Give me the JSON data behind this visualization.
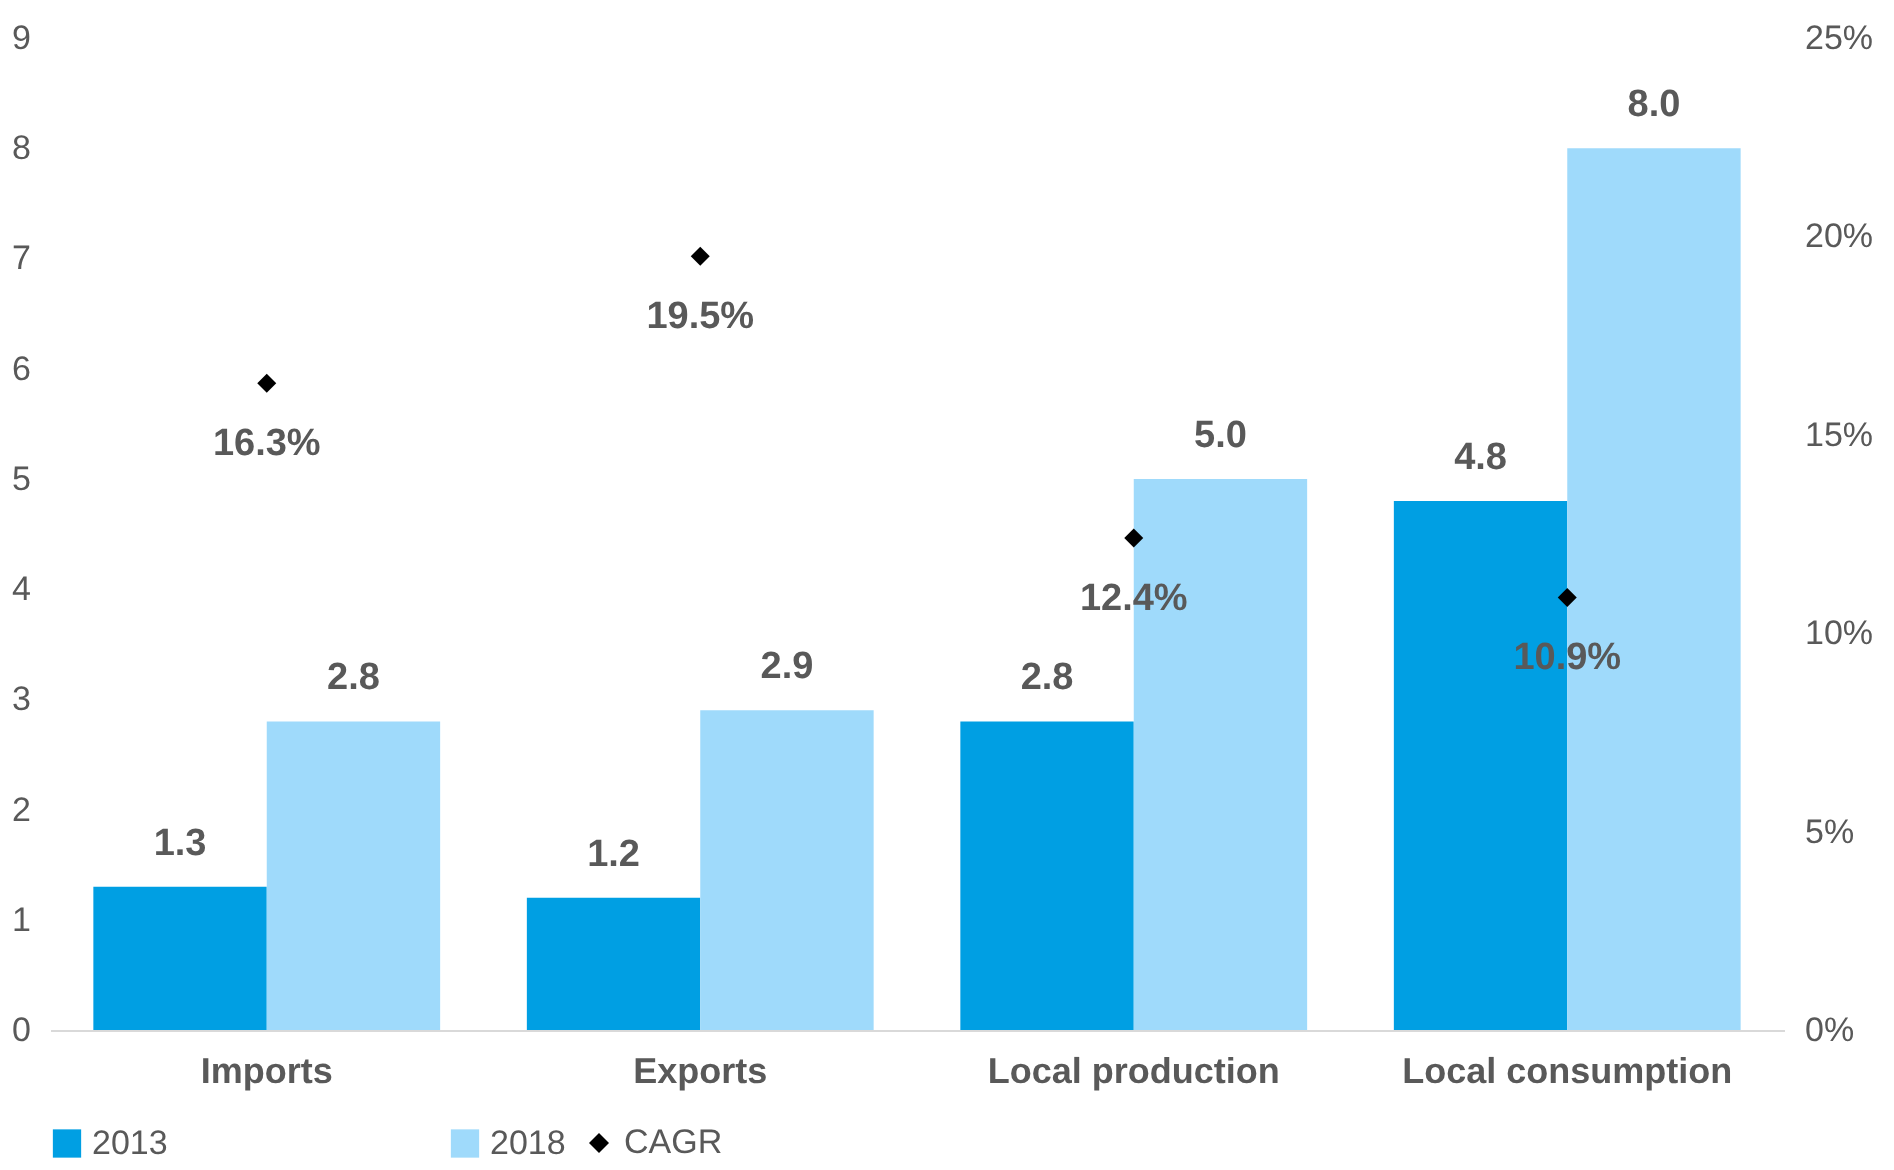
{
  "chart_data": {
    "type": "bar",
    "categories": [
      "Imports",
      "Exports",
      "Local production",
      "Local consumption"
    ],
    "series": [
      {
        "name": "2013",
        "type": "bar",
        "color": "#009fe3",
        "values": [
          1.3,
          1.2,
          2.8,
          4.8
        ],
        "value_labels": [
          "1.3",
          "1.2",
          "2.8",
          "4.8"
        ]
      },
      {
        "name": "2018",
        "type": "bar",
        "color": "#9fdafb",
        "values": [
          2.8,
          2.9,
          5.0,
          8.0
        ],
        "value_labels": [
          "2.8",
          "2.9",
          "5.0",
          "8.0"
        ]
      },
      {
        "name": "CAGR",
        "type": "scatter",
        "axis": "y2",
        "marker": "diamond",
        "color": "#000000",
        "values": [
          16.3,
          19.5,
          12.4,
          10.9
        ],
        "value_labels": [
          "16.3%",
          "19.5%",
          "12.4%",
          "10.9%"
        ]
      }
    ],
    "ylim": [
      0,
      9
    ],
    "yticks": [
      0,
      1,
      2,
      3,
      4,
      5,
      6,
      7,
      8,
      9
    ],
    "y2lim": [
      0,
      25
    ],
    "y2ticks": [
      {
        "value": 0,
        "label": "0%"
      },
      {
        "value": 5,
        "label": "5%"
      },
      {
        "value": 10,
        "label": "10%"
      },
      {
        "value": 15,
        "label": "15%"
      },
      {
        "value": 20,
        "label": "20%"
      },
      {
        "value": 25,
        "label": "25%"
      }
    ],
    "grid": false,
    "legend": "bottom"
  }
}
